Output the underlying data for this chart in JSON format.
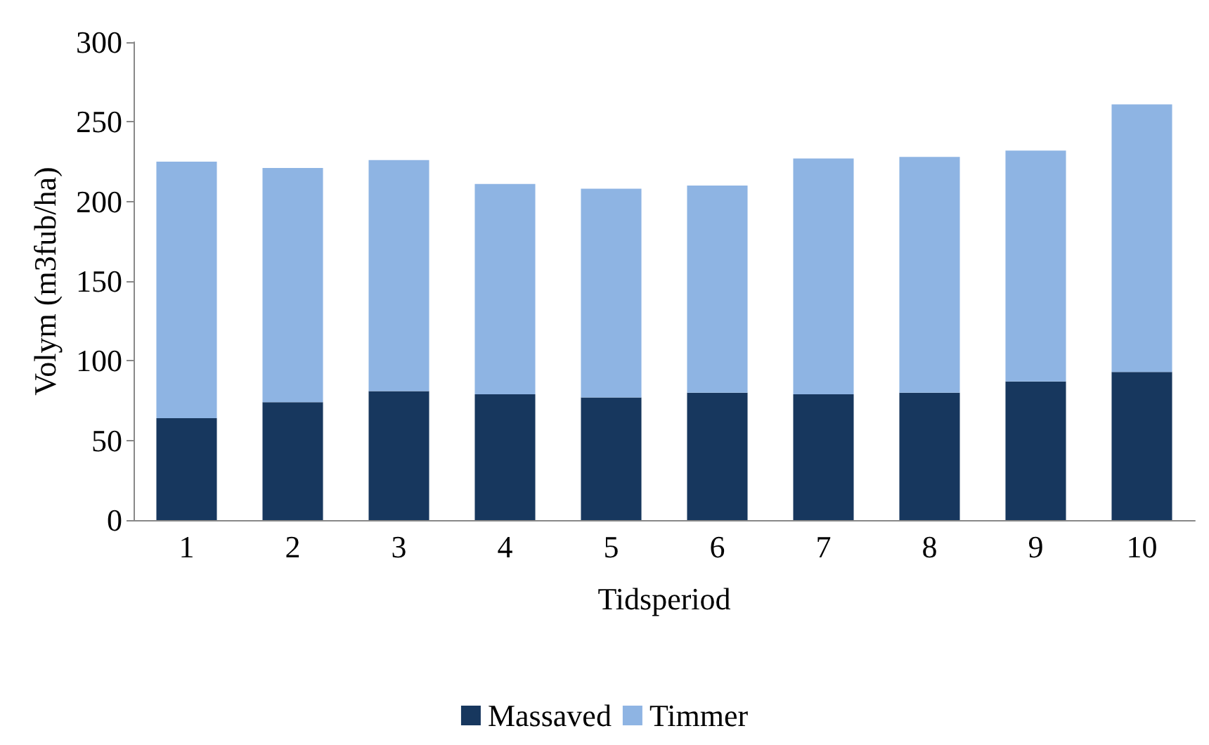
{
  "chart_data": {
    "type": "bar",
    "stacked": true,
    "xlabel": "Tidsperiod",
    "ylabel": "Volym (m3fub/ha)",
    "categories": [
      "1",
      "2",
      "3",
      "4",
      "5",
      "6",
      "7",
      "8",
      "9",
      "10"
    ],
    "series": [
      {
        "name": "Massaved",
        "color": "#17375e",
        "values": [
          64,
          74,
          81,
          79,
          77,
          80,
          79,
          80,
          87,
          93
        ]
      },
      {
        "name": "Timmer",
        "color": "#8eb4e3",
        "values": [
          161,
          147,
          145,
          132,
          131,
          130,
          148,
          148,
          145,
          168
        ]
      }
    ],
    "ylim": [
      0,
      300
    ],
    "yticks": [
      0,
      50,
      100,
      150,
      200,
      250,
      300
    ],
    "grid": false,
    "legend": "bottom"
  }
}
